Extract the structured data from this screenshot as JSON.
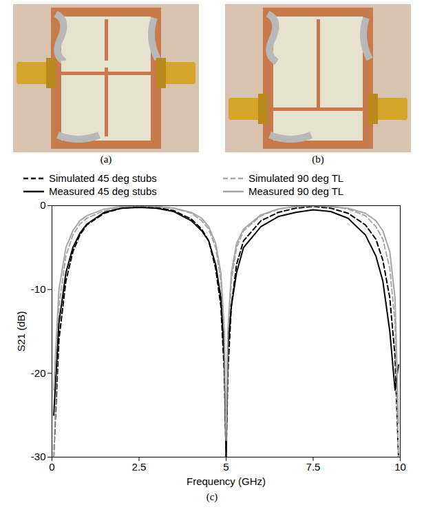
{
  "images": [
    {
      "caption": "(a)"
    },
    {
      "caption": "(b)"
    }
  ],
  "chart_data": {
    "type": "line",
    "caption": "(c)",
    "x_label": "Frequency (GHz)",
    "y_label": "S21 (dB)",
    "xlim": [
      0,
      10
    ],
    "xticks": [
      0,
      2.5,
      5,
      7.5,
      10
    ],
    "ylim": [
      -30,
      0
    ],
    "yticks": [
      0,
      -10,
      -20,
      -30
    ],
    "grid": false,
    "legend": "top",
    "x": [
      0.05,
      0.2,
      0.4,
      0.6,
      0.8,
      1,
      1.5,
      2,
      2.5,
      3,
      3.5,
      4,
      4.3,
      4.5,
      4.7,
      4.85,
      4.95,
      5,
      5.05,
      5.15,
      5.3,
      5.5,
      6,
      6.5,
      7,
      7.5,
      8,
      8.5,
      9,
      9.3,
      9.5,
      9.7,
      9.85,
      9.95
    ],
    "series": [
      {
        "name": "Simulated 45 deg stubs",
        "color": "#000000",
        "line_style": "dashed",
        "values": [
          -30,
          -16,
          -9,
          -5.5,
          -3.5,
          -2.3,
          -0.9,
          -0.3,
          -0.1,
          -0.2,
          -0.6,
          -1.6,
          -2.8,
          -4.2,
          -7.5,
          -12,
          -20,
          -30,
          -20,
          -12,
          -7,
          -4.2,
          -1.8,
          -0.8,
          -0.3,
          -0.1,
          -0.3,
          -0.9,
          -2.3,
          -4,
          -6.5,
          -11,
          -18,
          -30
        ]
      },
      {
        "name": "Simulated 90 deg TL",
        "color": "#a6a6a6",
        "line_style": "dashed",
        "values": [
          -30,
          -12,
          -6,
          -3.5,
          -2.2,
          -1.5,
          -0.6,
          -0.2,
          0,
          -0.1,
          -0.3,
          -0.9,
          -1.8,
          -2.8,
          -5,
          -9,
          -17,
          -30,
          -17,
          -9,
          -5,
          -3,
          -1.2,
          -0.4,
          -0.1,
          0,
          -0.1,
          -0.4,
          -1.2,
          -2.5,
          -4,
          -7.5,
          -14,
          -30
        ]
      },
      {
        "name": "Measured 45 deg stubs",
        "color": "#000000",
        "line_style": "solid",
        "values": [
          -25,
          -14,
          -8,
          -5,
          -3.3,
          -2.2,
          -0.8,
          -0.3,
          -0.2,
          -0.3,
          -0.7,
          -1.8,
          -3,
          -4.2,
          -7,
          -11,
          -18,
          -30,
          -17,
          -12,
          -8,
          -5,
          -2.5,
          -1.3,
          -0.8,
          -0.5,
          -0.7,
          -1.5,
          -3.5,
          -6,
          -9,
          -15,
          -22,
          -19
        ]
      },
      {
        "name": "Measured 90 deg TL",
        "color": "#a6a6a6",
        "line_style": "solid",
        "values": [
          -22,
          -10,
          -5,
          -3,
          -1.8,
          -1.2,
          -0.4,
          -0.1,
          0,
          -0.1,
          -0.3,
          -0.8,
          -1.5,
          -2.5,
          -4.5,
          -8,
          -15,
          -28,
          -15,
          -8,
          -4.5,
          -2.8,
          -1.1,
          -0.4,
          -0.1,
          0,
          -0.1,
          -0.3,
          -0.9,
          -1.8,
          -3,
          -5.5,
          -11,
          -26
        ]
      }
    ]
  }
}
